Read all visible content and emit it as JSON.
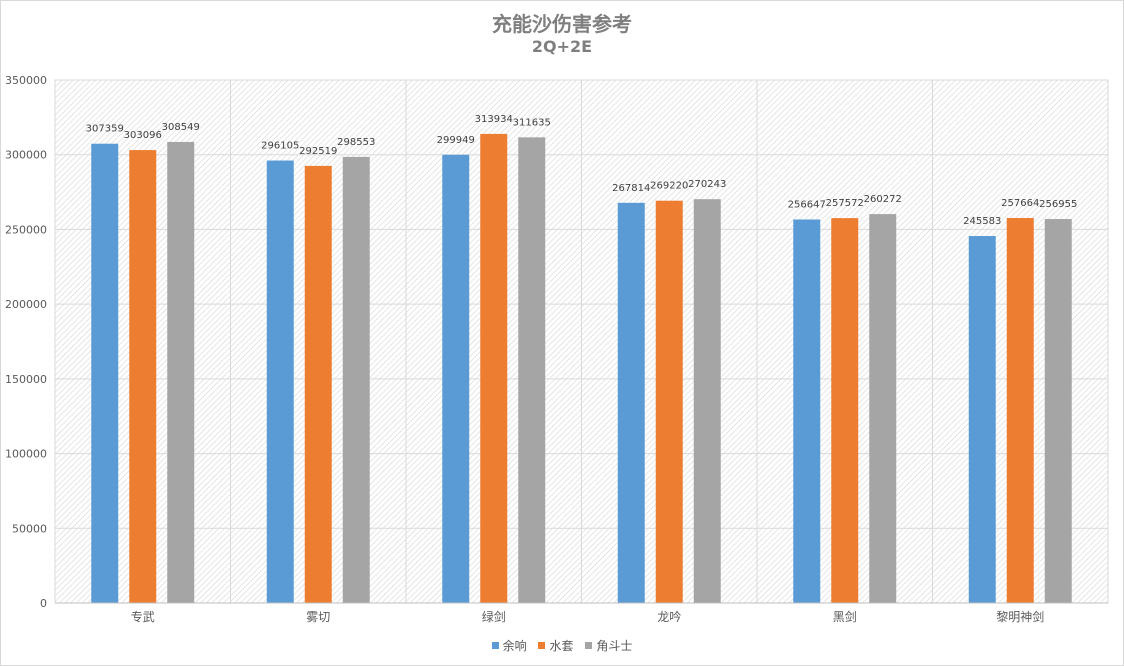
{
  "chart_data": {
    "type": "bar",
    "title": "充能沙伤害参考",
    "subtitle": "2Q+2E",
    "categories": [
      "专武",
      "雾切",
      "绿剑",
      "龙吟",
      "黑剑",
      "黎明神剑"
    ],
    "series": [
      {
        "name": "余响",
        "color": "#5b9bd5",
        "values": [
          307359,
          296105,
          299949,
          267814,
          256647,
          245583
        ]
      },
      {
        "name": "水套",
        "color": "#ed7d31",
        "values": [
          303096,
          292519,
          313934,
          269220,
          257572,
          257664
        ]
      },
      {
        "name": "角斗士",
        "color": "#a5a5a5",
        "values": [
          308549,
          298553,
          311635,
          270243,
          260272,
          256955
        ]
      }
    ],
    "ylim": [
      0,
      350000
    ],
    "yticks": [
      0,
      50000,
      100000,
      150000,
      200000,
      250000,
      300000,
      350000
    ],
    "grid": true,
    "legend": "bottom",
    "xlabel": "",
    "ylabel": ""
  }
}
